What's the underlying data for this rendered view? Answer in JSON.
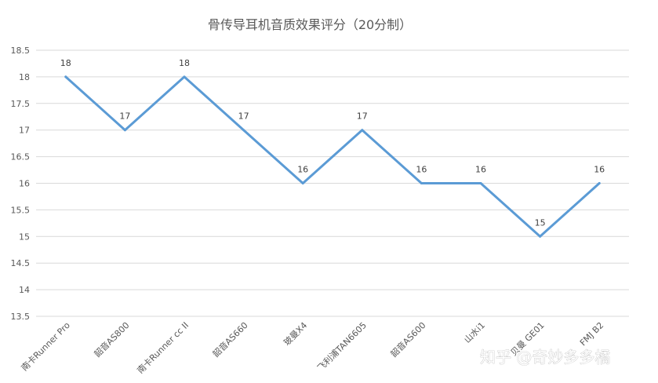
{
  "chart_data": {
    "type": "line",
    "title": "骨传导耳机音质效果评分（20分制）",
    "xlabel": "",
    "ylabel": "",
    "categories": [
      "南卡Runner Pro",
      "韶音AS800",
      "南卡Runner cc II",
      "韶音AS660",
      "玻曼X4",
      "飞利浦TAN6605",
      "韶音AS600",
      "山水i1",
      "贝曼 GE01",
      "FMJ B2"
    ],
    "series": [
      {
        "values": [
          18,
          17,
          18,
          17,
          16,
          17,
          16,
          16,
          15,
          16
        ]
      }
    ],
    "ylim": [
      13.5,
      18.5
    ],
    "yticks": [
      "18.5",
      "18",
      "17.5",
      "17",
      "16.5",
      "16",
      "15.5",
      "15",
      "14.5",
      "14",
      "13.5"
    ],
    "grid": true,
    "legend": "none",
    "color": "#5b9bd5"
  },
  "watermark": "知乎 @奇妙多多橘"
}
